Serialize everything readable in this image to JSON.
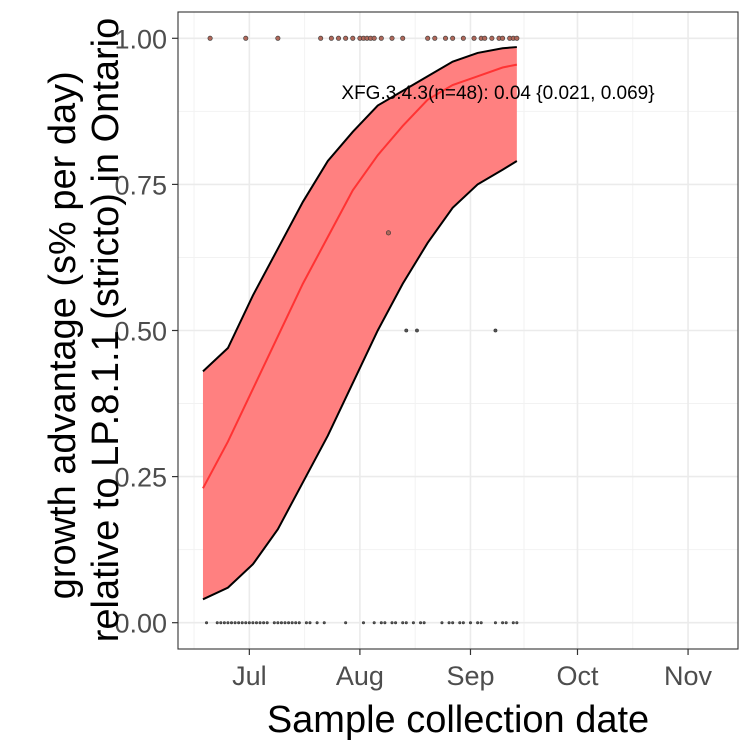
{
  "chart_data": {
    "type": "line",
    "title": "",
    "xlabel": "Sample collection date",
    "ylabel_lines": [
      "growth advantage (s% per day)",
      "relative to LP.8.1.1 (stricto) in Ontario"
    ],
    "x_tick_labels": [
      "Jul",
      "Aug",
      "Sep",
      "Oct",
      "Nov"
    ],
    "x_tick_dates": [
      "2025-07-01",
      "2025-08-01",
      "2025-09-01",
      "2025-10-01",
      "2025-11-01"
    ],
    "x_range": [
      "2025-06-11",
      "2025-11-15"
    ],
    "y_tick_labels": [
      "0.00",
      "0.25",
      "0.50",
      "0.75",
      "1.00"
    ],
    "y_ticks": [
      0,
      0.25,
      0.5,
      0.75,
      1.0
    ],
    "ylim": [
      -0.045,
      1.045
    ],
    "grid": true,
    "colors": {
      "fit": "#ff3333",
      "ribbon": "#ff8080",
      "ribbon_border": "#000000",
      "points": "#555555"
    },
    "annotation": "XFG.3.4.3(n=48): 0.04 {0.021, 0.069}",
    "series": [
      {
        "name": "XFG.3.4.3",
        "x": [
          "2025-06-18",
          "2025-06-25",
          "2025-07-02",
          "2025-07-09",
          "2025-07-16",
          "2025-07-23",
          "2025-07-30",
          "2025-08-06",
          "2025-08-13",
          "2025-08-20",
          "2025-08-27",
          "2025-09-03",
          "2025-09-10",
          "2025-09-14"
        ],
        "fit": [
          0.23,
          0.31,
          0.4,
          0.49,
          0.58,
          0.66,
          0.74,
          0.8,
          0.85,
          0.895,
          0.92,
          0.935,
          0.95,
          0.955
        ],
        "lower": [
          0.04,
          0.06,
          0.1,
          0.16,
          0.24,
          0.32,
          0.41,
          0.5,
          0.58,
          0.65,
          0.71,
          0.75,
          0.775,
          0.79
        ],
        "upper": [
          0.43,
          0.47,
          0.56,
          0.64,
          0.72,
          0.79,
          0.84,
          0.885,
          0.91,
          0.935,
          0.96,
          0.975,
          0.983,
          0.985
        ]
      }
    ],
    "observations": {
      "y1": [
        "2025-06-20",
        "2025-06-30",
        "2025-07-09",
        "2025-07-21",
        "2025-07-24",
        "2025-07-26",
        "2025-07-28",
        "2025-07-30",
        "2025-08-01",
        "2025-08-02",
        "2025-08-03",
        "2025-08-04",
        "2025-08-05",
        "2025-08-07",
        "2025-08-10",
        "2025-08-13",
        "2025-08-20",
        "2025-08-22",
        "2025-08-25",
        "2025-08-27",
        "2025-08-30",
        "2025-09-02",
        "2025-09-04",
        "2025-09-05",
        "2025-09-07",
        "2025-09-09",
        "2025-09-10",
        "2025-09-12",
        "2025-09-13",
        "2025-09-14"
      ],
      "y0_67": [
        "2025-08-09"
      ],
      "y0_5": [
        "2025-08-14",
        "2025-08-17",
        "2025-09-08"
      ],
      "y0": [
        "2025-06-19",
        "2025-06-22",
        "2025-06-23",
        "2025-06-24",
        "2025-06-25",
        "2025-06-26",
        "2025-06-27",
        "2025-06-28",
        "2025-06-29",
        "2025-06-30",
        "2025-07-01",
        "2025-07-02",
        "2025-07-03",
        "2025-07-04",
        "2025-07-05",
        "2025-07-06",
        "2025-07-08",
        "2025-07-09",
        "2025-07-10",
        "2025-07-11",
        "2025-07-12",
        "2025-07-13",
        "2025-07-14",
        "2025-07-15",
        "2025-07-17",
        "2025-07-18",
        "2025-07-20",
        "2025-07-22",
        "2025-07-28",
        "2025-08-02",
        "2025-08-05",
        "2025-08-07",
        "2025-08-08",
        "2025-08-10",
        "2025-08-11",
        "2025-08-13",
        "2025-08-14",
        "2025-08-16",
        "2025-08-18",
        "2025-08-19",
        "2025-08-24",
        "2025-08-26",
        "2025-08-27",
        "2025-08-29",
        "2025-08-30",
        "2025-09-01",
        "2025-09-03",
        "2025-09-04",
        "2025-09-08",
        "2025-09-10",
        "2025-09-11",
        "2025-09-13",
        "2025-09-14"
      ]
    }
  }
}
